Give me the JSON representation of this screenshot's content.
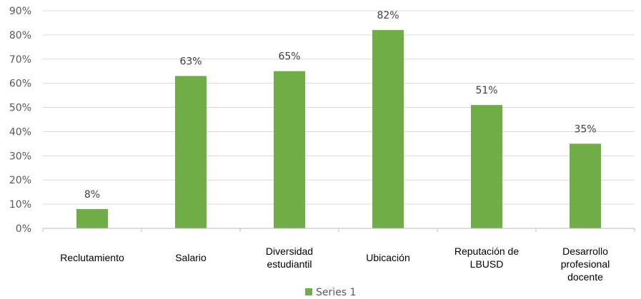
{
  "chart_data": {
    "type": "bar",
    "categories": [
      [
        "Reclutamiento"
      ],
      [
        "Salario"
      ],
      [
        "Diversidad",
        "estudiantil"
      ],
      [
        "Ubicación"
      ],
      [
        "Reputación de",
        "LBUSD"
      ],
      [
        "Desarrollo",
        "profesional",
        "docente"
      ]
    ],
    "series": [
      {
        "name": "Series 1",
        "values": [
          0.08,
          0.63,
          0.65,
          0.82,
          0.51,
          0.35
        ],
        "data_labels": [
          "8%",
          "63%",
          "65%",
          "82%",
          "51%",
          "35%"
        ],
        "color": "#70ad47"
      }
    ],
    "ylim": [
      0,
      0.9
    ],
    "yticks": [
      0,
      0.1,
      0.2,
      0.3,
      0.4,
      0.5,
      0.6,
      0.7,
      0.8,
      0.9
    ],
    "ytick_labels": [
      "0%",
      "10%",
      "20%",
      "30%",
      "40%",
      "50%",
      "60%",
      "70%",
      "80%",
      "90%"
    ],
    "grid": true,
    "legend": "bottom",
    "colors": {
      "bar": "#70ad47",
      "grid": "#d9d9d9",
      "axis": "#bfbfbf"
    }
  }
}
